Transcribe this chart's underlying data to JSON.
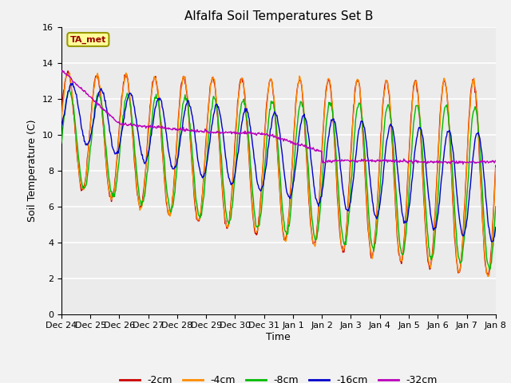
{
  "title": "Alfalfa Soil Temperatures Set B",
  "xlabel": "Time",
  "ylabel": "Soil Temperature (C)",
  "ylim": [
    0,
    16
  ],
  "yticks": [
    0,
    2,
    4,
    6,
    8,
    10,
    12,
    14,
    16
  ],
  "xtick_labels": [
    "Dec 24",
    "Dec 25",
    "Dec 26",
    "Dec 27",
    "Dec 28",
    "Dec 29",
    "Dec 30",
    "Dec 31",
    "Jan 1",
    "Jan 2",
    "Jan 3",
    "Jan 4",
    "Jan 5",
    "Jan 6",
    "Jan 7",
    "Jan 8"
  ],
  "annotation_text": "TA_met",
  "annotation_bbox_facecolor": "#FFFF99",
  "annotation_bbox_edgecolor": "#999900",
  "annotation_text_color": "#990000",
  "series_colors": {
    "-2cm": "#CC0000",
    "-4cm": "#FF8C00",
    "-8cm": "#00BB00",
    "-16cm": "#0000CC",
    "-32cm": "#BB00BB"
  },
  "background_color": "#EBEBEB",
  "grid_color": "#FFFFFF",
  "title_fontsize": 11,
  "label_fontsize": 9,
  "tick_fontsize": 8
}
